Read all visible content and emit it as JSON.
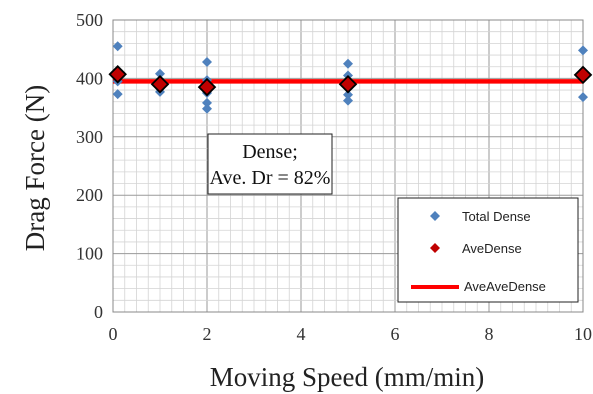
{
  "chart_data": {
    "type": "scatter",
    "xlabel": "Moving Speed (mm/min)",
    "ylabel": "Drag Force (N)",
    "xlim": [
      0,
      10
    ],
    "ylim": [
      0,
      500
    ],
    "x_ticks": [
      "0",
      "2",
      "4",
      "6",
      "8",
      "10"
    ],
    "y_ticks": [
      "0",
      "100",
      "200",
      "300",
      "400",
      "500"
    ],
    "minor_grid": {
      "x_step": 0.25,
      "y_step": 20
    },
    "grid": true,
    "legend_position": "bottom-right",
    "annotation": [
      "Dense;",
      "Ave. Dr = 82%"
    ],
    "series": [
      {
        "name": "Total Dense",
        "marker": "diamond",
        "color": "#4f81bd",
        "points": [
          [
            0.1,
            455
          ],
          [
            0.1,
            410
          ],
          [
            0.1,
            395
          ],
          [
            0.1,
            373
          ],
          [
            1,
            408
          ],
          [
            1,
            397
          ],
          [
            1,
            385
          ],
          [
            1,
            377
          ],
          [
            2,
            428
          ],
          [
            2,
            397
          ],
          [
            2,
            375
          ],
          [
            2,
            358
          ],
          [
            2,
            348
          ],
          [
            5,
            425
          ],
          [
            5,
            405
          ],
          [
            5,
            390
          ],
          [
            5,
            372
          ],
          [
            5,
            362
          ],
          [
            10,
            448
          ],
          [
            10,
            405
          ],
          [
            10,
            368
          ]
        ]
      },
      {
        "name": "AveDense",
        "marker": "diamond",
        "color": "#c00000",
        "points": [
          [
            0.1,
            407
          ],
          [
            1,
            390
          ],
          [
            2,
            385
          ],
          [
            5,
            390
          ],
          [
            10,
            406
          ]
        ]
      },
      {
        "name": "AveAveDense",
        "marker": "line",
        "color": "#ff0000",
        "points": [
          [
            0,
            395
          ],
          [
            10,
            395
          ]
        ]
      }
    ]
  }
}
